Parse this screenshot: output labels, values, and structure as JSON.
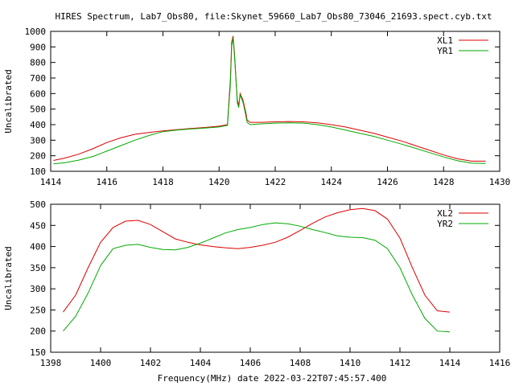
{
  "title": "HIRES Spectrum, Lab7_Obs80, file:Skynet_59660_Lab7_Obs80_73046_21693.spect.cyb.txt",
  "xlabel": "Frequency(MHz) date 2022-03-22T07:45:57.400",
  "colors": {
    "series_a": "#dd0000",
    "series_b": "#00aa00",
    "frame": "#000000"
  },
  "chart_data": [
    {
      "type": "line",
      "ylabel": "Uncalibrated",
      "xlim": [
        1414,
        1430
      ],
      "ylim": [
        100,
        1000
      ],
      "xticks": [
        1414,
        1416,
        1418,
        1420,
        1422,
        1424,
        1426,
        1428,
        1430
      ],
      "yticks": [
        100,
        200,
        300,
        400,
        500,
        600,
        700,
        800,
        900,
        1000
      ],
      "legend_position": "top-right",
      "series": [
        {
          "name": "XL1",
          "color": "#dd0000",
          "points": [
            [
              1414.1,
              170
            ],
            [
              1414.5,
              185
            ],
            [
              1415,
              210
            ],
            [
              1415.5,
              245
            ],
            [
              1416,
              285
            ],
            [
              1416.5,
              315
            ],
            [
              1417,
              338
            ],
            [
              1417.5,
              350
            ],
            [
              1418,
              360
            ],
            [
              1418.5,
              368
            ],
            [
              1419,
              375
            ],
            [
              1419.5,
              382
            ],
            [
              1420,
              390
            ],
            [
              1420.3,
              400
            ],
            [
              1420.35,
              550
            ],
            [
              1420.4,
              680
            ],
            [
              1420.45,
              930
            ],
            [
              1420.5,
              970
            ],
            [
              1420.55,
              860
            ],
            [
              1420.6,
              700
            ],
            [
              1420.65,
              560
            ],
            [
              1420.7,
              520
            ],
            [
              1420.75,
              600
            ],
            [
              1420.8,
              580
            ],
            [
              1420.85,
              560
            ],
            [
              1420.9,
              520
            ],
            [
              1420.95,
              480
            ],
            [
              1421.0,
              430
            ],
            [
              1421.1,
              415
            ],
            [
              1421.5,
              415
            ],
            [
              1422,
              418
            ],
            [
              1422.5,
              420
            ],
            [
              1423,
              418
            ],
            [
              1423.5,
              412
            ],
            [
              1424,
              400
            ],
            [
              1424.5,
              385
            ],
            [
              1425,
              365
            ],
            [
              1425.5,
              345
            ],
            [
              1426,
              320
            ],
            [
              1426.5,
              295
            ],
            [
              1427,
              265
            ],
            [
              1427.5,
              235
            ],
            [
              1428,
              205
            ],
            [
              1428.5,
              180
            ],
            [
              1429,
              165
            ],
            [
              1429.5,
              165
            ]
          ]
        },
        {
          "name": "YR1",
          "color": "#00aa00",
          "points": [
            [
              1414.1,
              148
            ],
            [
              1414.5,
              155
            ],
            [
              1415,
              172
            ],
            [
              1415.5,
              195
            ],
            [
              1416,
              230
            ],
            [
              1416.5,
              265
            ],
            [
              1417,
              300
            ],
            [
              1417.5,
              330
            ],
            [
              1418,
              355
            ],
            [
              1418.5,
              365
            ],
            [
              1419,
              372
            ],
            [
              1419.5,
              378
            ],
            [
              1420,
              385
            ],
            [
              1420.3,
              395
            ],
            [
              1420.35,
              530
            ],
            [
              1420.4,
              650
            ],
            [
              1420.45,
              900
            ],
            [
              1420.5,
              960
            ],
            [
              1420.55,
              840
            ],
            [
              1420.6,
              690
            ],
            [
              1420.65,
              540
            ],
            [
              1420.7,
              510
            ],
            [
              1420.75,
              590
            ],
            [
              1420.8,
              570
            ],
            [
              1420.85,
              545
            ],
            [
              1420.9,
              505
            ],
            [
              1420.95,
              460
            ],
            [
              1421.0,
              415
            ],
            [
              1421.1,
              400
            ],
            [
              1421.5,
              405
            ],
            [
              1422,
              410
            ],
            [
              1422.5,
              412
            ],
            [
              1423,
              410
            ],
            [
              1423.5,
              400
            ],
            [
              1424,
              385
            ],
            [
              1424.5,
              365
            ],
            [
              1425,
              345
            ],
            [
              1425.5,
              325
            ],
            [
              1426,
              300
            ],
            [
              1426.5,
              275
            ],
            [
              1427,
              248
            ],
            [
              1427.5,
              220
            ],
            [
              1428,
              192
            ],
            [
              1428.5,
              168
            ],
            [
              1429,
              152
            ],
            [
              1429.5,
              150
            ]
          ]
        }
      ]
    },
    {
      "type": "line",
      "ylabel": "Uncalibrated",
      "xlim": [
        1398,
        1416
      ],
      "ylim": [
        150,
        500
      ],
      "xticks": [
        1398,
        1400,
        1402,
        1404,
        1406,
        1408,
        1410,
        1412,
        1414,
        1416
      ],
      "yticks": [
        150,
        200,
        250,
        300,
        350,
        400,
        450,
        500
      ],
      "legend_position": "top-right",
      "series": [
        {
          "name": "XL2",
          "color": "#dd0000",
          "points": [
            [
              1398.5,
              245
            ],
            [
              1399,
              285
            ],
            [
              1399.5,
              350
            ],
            [
              1400,
              410
            ],
            [
              1400.5,
              445
            ],
            [
              1401,
              460
            ],
            [
              1401.5,
              462
            ],
            [
              1402,
              452
            ],
            [
              1402.5,
              435
            ],
            [
              1403,
              418
            ],
            [
              1403.5,
              410
            ],
            [
              1404,
              404
            ],
            [
              1404.5,
              400
            ],
            [
              1405,
              397
            ],
            [
              1405.5,
              395
            ],
            [
              1406,
              398
            ],
            [
              1406.5,
              403
            ],
            [
              1407,
              410
            ],
            [
              1407.5,
              422
            ],
            [
              1408,
              438
            ],
            [
              1408.5,
              455
            ],
            [
              1409,
              470
            ],
            [
              1409.5,
              480
            ],
            [
              1410,
              487
            ],
            [
              1410.5,
              490
            ],
            [
              1411,
              485
            ],
            [
              1411.5,
              465
            ],
            [
              1412,
              420
            ],
            [
              1412.5,
              350
            ],
            [
              1413,
              285
            ],
            [
              1413.5,
              248
            ],
            [
              1414,
              245
            ]
          ]
        },
        {
          "name": "YR2",
          "color": "#00aa00",
          "points": [
            [
              1398.5,
              200
            ],
            [
              1399,
              235
            ],
            [
              1399.5,
              290
            ],
            [
              1400,
              355
            ],
            [
              1400.5,
              395
            ],
            [
              1401,
              403
            ],
            [
              1401.5,
              405
            ],
            [
              1402,
              398
            ],
            [
              1402.5,
              393
            ],
            [
              1403,
              392
            ],
            [
              1403.5,
              398
            ],
            [
              1404,
              408
            ],
            [
              1404.5,
              420
            ],
            [
              1405,
              432
            ],
            [
              1405.5,
              440
            ],
            [
              1406,
              445
            ],
            [
              1406.5,
              452
            ],
            [
              1407,
              456
            ],
            [
              1407.5,
              454
            ],
            [
              1408,
              448
            ],
            [
              1408.5,
              440
            ],
            [
              1409,
              433
            ],
            [
              1409.5,
              425
            ],
            [
              1410,
              422
            ],
            [
              1410.5,
              421
            ],
            [
              1411,
              415
            ],
            [
              1411.5,
              395
            ],
            [
              1412,
              350
            ],
            [
              1412.5,
              285
            ],
            [
              1413,
              230
            ],
            [
              1413.5,
              200
            ],
            [
              1414,
              198
            ]
          ]
        }
      ]
    }
  ]
}
